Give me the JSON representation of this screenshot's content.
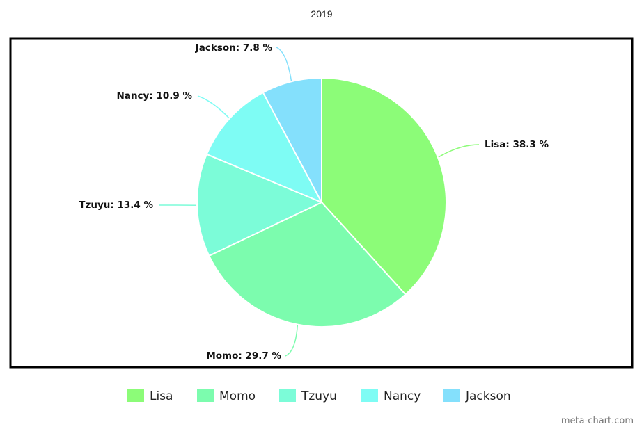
{
  "chart_data": {
    "type": "pie",
    "title": "2019",
    "categories": [
      "Lisa",
      "Momo",
      "Tzuyu",
      "Nancy",
      "Jackson"
    ],
    "values": [
      38.3,
      29.7,
      13.4,
      10.9,
      7.8
    ],
    "unit": "%",
    "colors": [
      "#8cfc78",
      "#7cfcae",
      "#7cfcd8",
      "#7efcf4",
      "#84e0fc"
    ],
    "slice_labels": [
      "Lisa: 38.3 %",
      "Momo: 29.7 %",
      "Tzuyu: 13.4 %",
      "Nancy: 10.9 %",
      "Jackson: 7.8 %"
    ],
    "legend": {
      "placement": "bottom",
      "items": [
        "Lisa",
        "Momo",
        "Tzuyu",
        "Nancy",
        "Jackson"
      ]
    }
  },
  "credit": "meta-chart.com"
}
